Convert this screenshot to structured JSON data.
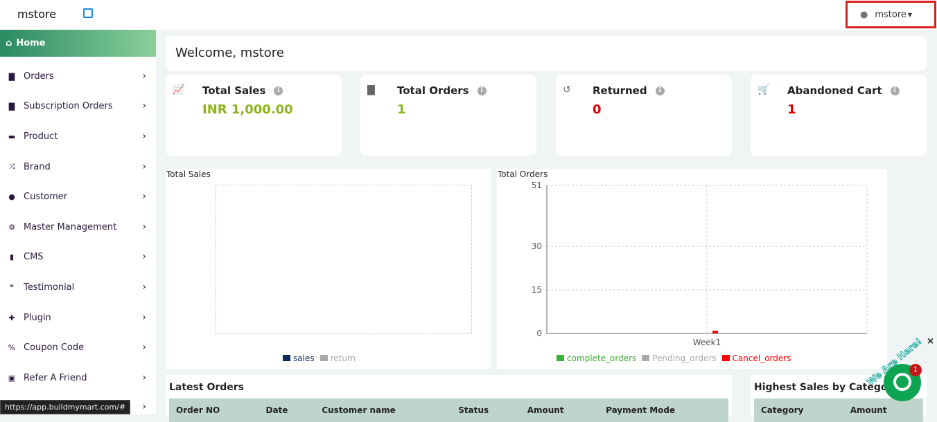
{
  "header": {
    "brand": "mstore",
    "external_link_icon": "external-link-icon",
    "user": "mstore",
    "user_highlight": "#e02020"
  },
  "sidebar": {
    "home": "Home",
    "items": [
      {
        "label": "Orders",
        "icon": "bag"
      },
      {
        "label": "Subscription Orders",
        "icon": "bag"
      },
      {
        "label": "Product",
        "icon": "archive"
      },
      {
        "label": "Brand",
        "icon": "shuffle"
      },
      {
        "label": "Customer",
        "icon": "user"
      },
      {
        "label": "Master Management",
        "icon": "user-gear"
      },
      {
        "label": "CMS",
        "icon": "file"
      },
      {
        "label": "Testimonial",
        "icon": "quote"
      },
      {
        "label": "Plugin",
        "icon": "puzzle"
      },
      {
        "label": "Coupon Code",
        "icon": "percent"
      },
      {
        "label": "Refer A Friend",
        "icon": "id-card"
      },
      {
        "label": "",
        "icon": ""
      }
    ]
  },
  "status_url": "https://app.buildmymart.com/#",
  "welcome": "Welcome, mstore",
  "stats": [
    {
      "title": "Total Sales",
      "value": "INR 1,000.00",
      "color": "#8db51d",
      "icon": "chart-line"
    },
    {
      "title": "Total Orders",
      "value": "1",
      "color": "#8db51d",
      "icon": "bag"
    },
    {
      "title": "Returned",
      "value": "0",
      "color": "#e00000",
      "icon": "undo"
    },
    {
      "title": "Abandoned Cart",
      "value": "1",
      "color": "#e00000",
      "icon": "cart"
    }
  ],
  "chart_data": [
    {
      "type": "bar",
      "title": "Total Sales",
      "categories": [],
      "series": [
        {
          "name": "sales",
          "color": "#0b2a5b",
          "values": []
        },
        {
          "name": "return",
          "color": "#aaaaaa",
          "values": []
        }
      ],
      "grid": true,
      "legend": "bottom"
    },
    {
      "type": "bar",
      "title": "Total Orders",
      "categories": [
        "Week1"
      ],
      "yticks": [
        0,
        15,
        30,
        51
      ],
      "ylim": [
        0,
        51
      ],
      "series": [
        {
          "name": "complete_orders",
          "color": "#3cb034",
          "values": [
            0
          ]
        },
        {
          "name": "Pending_orders",
          "color": "#aaaaaa",
          "values": [
            0
          ]
        },
        {
          "name": "Cancel_orders",
          "color": "#ff0000",
          "values": [
            0
          ]
        }
      ],
      "grid": true,
      "legend": "bottom"
    }
  ],
  "latest_orders": {
    "title": "Latest Orders",
    "columns": [
      "Order NO",
      "Date",
      "Customer name",
      "Status",
      "Amount",
      "Payment Mode"
    ]
  },
  "highest_sales": {
    "title": "Highest Sales by Category",
    "columns": [
      "Category",
      "Amount"
    ]
  },
  "chat": {
    "label": "We Are Here!",
    "badge": "1",
    "close": "×"
  }
}
